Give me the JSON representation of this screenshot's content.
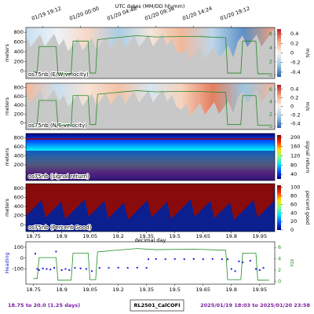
{
  "top_axis": {
    "label": "UTC dates (MM/DD hh:mm)",
    "ticks": [
      {
        "value": 18.8,
        "label": "01/19 19:12"
      },
      {
        "value": 19.0,
        "label": "01/20 00:00"
      },
      {
        "value": 19.2,
        "label": "01/20 04:48"
      },
      {
        "value": 19.4,
        "label": "01/20 09:36"
      },
      {
        "value": 19.6,
        "label": "01/20 14:24"
      },
      {
        "value": 19.8,
        "label": "01/20 19:12"
      }
    ]
  },
  "chart_data": [
    {
      "type": "heatmap",
      "title": "os75nb (E/W velocity)",
      "ylabel": "meters",
      "ylim": [
        -150,
        900
      ],
      "yticks": [
        0,
        200,
        400,
        600,
        800
      ],
      "colorbar_label": "m/s",
      "clim": [
        -0.5,
        0.5
      ],
      "cticks": [
        0.4,
        0.2,
        0.0,
        -0.2,
        -0.4
      ],
      "colormap": [
        "#2b5fa8",
        "#9cc6e0",
        "#f5f3ef",
        "#f4a57e",
        "#b81d2c"
      ],
      "y2lim": [
        -0.5,
        7
      ],
      "y2ticks": [
        0,
        2,
        4,
        6
      ],
      "line_color": "#228b22"
    },
    {
      "type": "heatmap",
      "title": "os75nb (N/S velocity)",
      "ylabel": "meters",
      "ylim": [
        -150,
        900
      ],
      "yticks": [
        0,
        200,
        400,
        600,
        800
      ],
      "colorbar_label": "m/s",
      "clim": [
        -0.5,
        0.5
      ],
      "cticks": [
        0.4,
        0.2,
        0.0,
        -0.2,
        -0.4
      ],
      "colormap": [
        "#2b5fa8",
        "#9cc6e0",
        "#f5f3ef",
        "#f4a57e",
        "#b81d2c"
      ],
      "y2lim": [
        -0.5,
        7
      ],
      "y2ticks": [
        0,
        2,
        4,
        6
      ],
      "line_color": "#228b22"
    },
    {
      "type": "heatmap",
      "title": "os75nb (signal return)",
      "ylabel": "meters",
      "ylim": [
        -150,
        900
      ],
      "yticks": [
        200,
        400,
        600,
        800
      ],
      "colorbar_label": "signal return",
      "clim": [
        20,
        210
      ],
      "cticks": [
        200,
        160,
        120,
        80,
        40
      ],
      "colormap": [
        "#00007f",
        "#0050ff",
        "#00e0ff",
        "#80ff80",
        "#ffe000",
        "#ff3000",
        "#7f0000"
      ]
    },
    {
      "type": "heatmap",
      "title": "os75nb (Percent Good)",
      "ylabel": "meters",
      "ylim": [
        -150,
        900
      ],
      "yticks": [
        0,
        200,
        400,
        600,
        800
      ],
      "colorbar_label": "percent good",
      "clim": [
        0,
        105
      ],
      "cticks": [
        100,
        80,
        60,
        40,
        20,
        0
      ],
      "colormap": [
        "#00007f",
        "#0050ff",
        "#00e0ff",
        "#80ff80",
        "#ffe000",
        "#ff3000",
        "#7f0000"
      ],
      "xlabel": "decimal day",
      "xticks": [
        18.75,
        18.9,
        19.05,
        19.2,
        19.35,
        19.5,
        19.65,
        19.8,
        19.95
      ]
    },
    {
      "type": "scatter",
      "ylabel": "Heading",
      "ylim": [
        -240,
        150
      ],
      "yticks": [
        -100,
        0,
        100
      ],
      "color": "#1f1fd6",
      "x": [
        18.76,
        18.77,
        18.78,
        18.8,
        18.82,
        18.84,
        18.86,
        18.87,
        18.9,
        18.92,
        18.94,
        18.97,
        19.0,
        19.03,
        19.06,
        19.1,
        19.15,
        19.2,
        19.25,
        19.3,
        19.35,
        19.36,
        19.4,
        19.45,
        19.5,
        19.55,
        19.6,
        19.65,
        19.7,
        19.75,
        19.78,
        19.8,
        19.82,
        19.84,
        19.86,
        19.9,
        19.93,
        19.95,
        19.97
      ],
      "values": [
        40,
        -100,
        -110,
        -95,
        -100,
        -105,
        -90,
        60,
        -110,
        -100,
        -110,
        -90,
        -95,
        -100,
        -120,
        -90,
        -90,
        -88,
        -90,
        -88,
        -90,
        -10,
        -8,
        -10,
        -8,
        -10,
        -9,
        -10,
        -8,
        -10,
        -10,
        -100,
        -120,
        -30,
        -40,
        -25,
        -100,
        -110,
        -90
      ],
      "xlim": [
        18.71,
        20.03
      ],
      "xticks": [
        18.75,
        18.9,
        19.05,
        19.2,
        19.35,
        19.5,
        19.65,
        19.8,
        19.95
      ],
      "y2label": "kts",
      "y2lim": [
        -0.5,
        7
      ],
      "y2ticks": [
        0,
        2,
        4,
        6
      ],
      "speed": {
        "color": "#228b22",
        "x": [
          18.75,
          18.77,
          18.78,
          18.87,
          18.88,
          18.95,
          18.96,
          19.04,
          19.05,
          19.08,
          19.09,
          19.15,
          19.3,
          19.4,
          19.6,
          19.77,
          19.78,
          19.85,
          19.86,
          19.93,
          19.94,
          20.0
        ],
        "values": [
          0.5,
          0.5,
          4.2,
          4.2,
          0.2,
          0.2,
          5,
          5,
          0.3,
          0.3,
          5.2,
          5.4,
          5.8,
          5.6,
          5.7,
          5.5,
          0.3,
          0.3,
          5,
          5,
          0.2,
          0.2
        ]
      }
    }
  ],
  "footer": {
    "left": "18.75 to 20.0 (1.25 days)",
    "center": "RL2501_CalCOFI",
    "right": "2025/01/19 18:03 to 2025/01/20 23:58"
  }
}
